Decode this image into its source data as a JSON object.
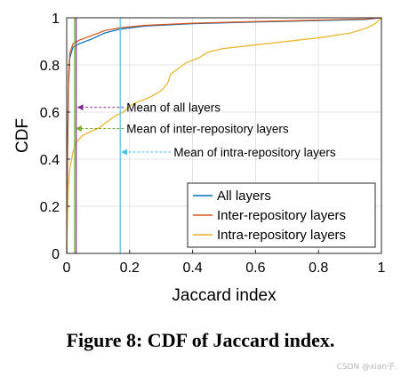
{
  "chart_data": {
    "type": "line",
    "xlabel": "Jaccard index",
    "ylabel": "CDF",
    "xlim": [
      0,
      1
    ],
    "ylim": [
      0,
      1
    ],
    "xticks": [
      "0",
      "0.2",
      "0.4",
      "0.6",
      "0.8",
      "1"
    ],
    "yticks": [
      "0",
      "0.2",
      "0.4",
      "0.6",
      "0.8",
      "1"
    ],
    "grid": true,
    "legend_position": "bottom-right",
    "series": [
      {
        "name": "All layers",
        "color": "#0072BD",
        "points": [
          [
            0,
            0
          ],
          [
            0.003,
            0.45
          ],
          [
            0.006,
            0.72
          ],
          [
            0.01,
            0.83
          ],
          [
            0.02,
            0.875
          ],
          [
            0.04,
            0.89
          ],
          [
            0.08,
            0.91
          ],
          [
            0.12,
            0.935
          ],
          [
            0.17,
            0.952
          ],
          [
            0.25,
            0.965
          ],
          [
            0.4,
            0.975
          ],
          [
            0.6,
            0.982
          ],
          [
            0.8,
            0.988
          ],
          [
            0.95,
            0.993
          ],
          [
            1,
            1
          ]
        ]
      },
      {
        "name": "Inter-repository layers",
        "color": "#D95319",
        "points": [
          [
            0,
            0
          ],
          [
            0.003,
            0.5
          ],
          [
            0.006,
            0.76
          ],
          [
            0.01,
            0.85
          ],
          [
            0.02,
            0.89
          ],
          [
            0.04,
            0.905
          ],
          [
            0.08,
            0.925
          ],
          [
            0.12,
            0.945
          ],
          [
            0.17,
            0.958
          ],
          [
            0.25,
            0.968
          ],
          [
            0.4,
            0.977
          ],
          [
            0.6,
            0.984
          ],
          [
            0.8,
            0.99
          ],
          [
            0.95,
            0.995
          ],
          [
            1,
            1
          ]
        ]
      },
      {
        "name": "Intra-repository layers",
        "color": "#EDB120",
        "points": [
          [
            0,
            0
          ],
          [
            0.005,
            0.28
          ],
          [
            0.01,
            0.36
          ],
          [
            0.02,
            0.43
          ],
          [
            0.03,
            0.47
          ],
          [
            0.05,
            0.5
          ],
          [
            0.08,
            0.52
          ],
          [
            0.1,
            0.53
          ],
          [
            0.12,
            0.55
          ],
          [
            0.15,
            0.58
          ],
          [
            0.18,
            0.6
          ],
          [
            0.2,
            0.625
          ],
          [
            0.22,
            0.64
          ],
          [
            0.26,
            0.66
          ],
          [
            0.3,
            0.69
          ],
          [
            0.32,
            0.72
          ],
          [
            0.33,
            0.76
          ],
          [
            0.35,
            0.78
          ],
          [
            0.38,
            0.81
          ],
          [
            0.42,
            0.83
          ],
          [
            0.45,
            0.855
          ],
          [
            0.5,
            0.87
          ],
          [
            0.6,
            0.885
          ],
          [
            0.7,
            0.9
          ],
          [
            0.8,
            0.915
          ],
          [
            0.9,
            0.935
          ],
          [
            0.95,
            0.955
          ],
          [
            0.98,
            0.975
          ],
          [
            1,
            1
          ]
        ]
      }
    ],
    "mean_lines": [
      {
        "series": "All layers",
        "x": 0.03,
        "color": "#7E2F8E"
      },
      {
        "series": "Inter-repository layers",
        "x": 0.025,
        "color": "#77AC30"
      },
      {
        "series": "Intra-repository layers",
        "x": 0.17,
        "color": "#4DBEEE"
      }
    ],
    "annotations": [
      {
        "text": "Mean of all layers",
        "x_arrow": 0.03,
        "y": 0.62,
        "color": "#7E2F8E"
      },
      {
        "text": "Mean of inter-repository layers",
        "x_arrow": 0.025,
        "y": 0.53,
        "color": "#77AC30"
      },
      {
        "text": "Mean of intra-repository layers",
        "x_arrow": 0.17,
        "y": 0.43,
        "color": "#4DBEEE"
      }
    ]
  },
  "caption": "Figure 8: CDF of Jaccard index.",
  "watermark": "CSDN @xian子."
}
